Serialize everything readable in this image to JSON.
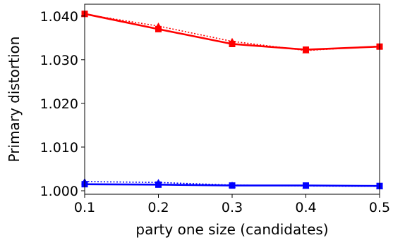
{
  "chart_data": {
    "type": "line",
    "title": "",
    "xlabel": "party one size (candidates)",
    "ylabel": "Primary distortion",
    "x": [
      0.1,
      0.2,
      0.3,
      0.4,
      0.5
    ],
    "x_tick_labels": [
      "0.1",
      "0.2",
      "0.3",
      "0.4",
      "0.5"
    ],
    "y_tick_labels": [
      "1.000",
      "1.010",
      "1.020",
      "1.030",
      "1.040"
    ],
    "y_ticks": [
      1.0,
      1.01,
      1.02,
      1.03,
      1.04
    ],
    "xlim": [
      0.1,
      0.5
    ],
    "ylim": [
      0.9992,
      1.0427
    ],
    "grid": false,
    "legend": "none",
    "series": [
      {
        "color": "#ff0000",
        "style": "solid",
        "marker": "square",
        "values": [
          1.0405,
          1.037,
          1.0336,
          1.0323,
          1.033
        ]
      },
      {
        "color": "#ff0000",
        "style": "dotted",
        "marker": "triangle",
        "values": [
          1.0404,
          1.0377,
          1.0342,
          1.0321,
          1.0331
        ]
      },
      {
        "color": "#0000ff",
        "style": "solid",
        "marker": "square",
        "values": [
          1.0015,
          1.0014,
          1.0012,
          1.0012,
          1.0011
        ]
      },
      {
        "color": "#0000ff",
        "style": "dotted",
        "marker": "triangle",
        "values": [
          1.0021,
          1.0019,
          1.0013,
          1.0011,
          1.001
        ]
      }
    ]
  }
}
